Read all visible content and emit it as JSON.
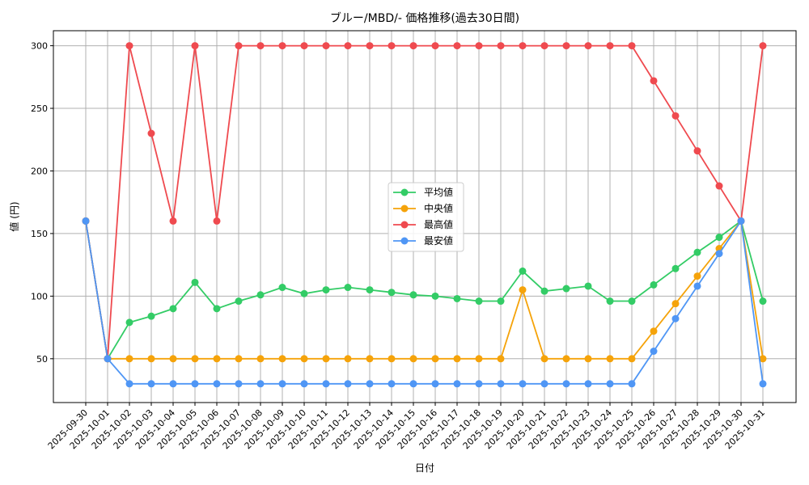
{
  "chart_data": {
    "type": "line",
    "title": "ブルー/MBD/- 価格推移(過去30日間)",
    "xlabel": "日付",
    "ylabel": "値 (円)",
    "ylim": [
      15,
      312
    ],
    "yticks": [
      50,
      100,
      150,
      200,
      250,
      300
    ],
    "grid": true,
    "legend_position": "center",
    "categories": [
      "2025-09-30",
      "2025-10-01",
      "2025-10-02",
      "2025-10-03",
      "2025-10-04",
      "2025-10-05",
      "2025-10-06",
      "2025-10-07",
      "2025-10-08",
      "2025-10-09",
      "2025-10-10",
      "2025-10-11",
      "2025-10-12",
      "2025-10-13",
      "2025-10-14",
      "2025-10-15",
      "2025-10-16",
      "2025-10-17",
      "2025-10-18",
      "2025-10-19",
      "2025-10-20",
      "2025-10-21",
      "2025-10-22",
      "2025-10-23",
      "2025-10-24",
      "2025-10-25",
      "2025-10-26",
      "2025-10-27",
      "2025-10-28",
      "2025-10-29",
      "2025-10-30",
      "2025-10-31"
    ],
    "series": [
      {
        "name": "平均値",
        "color": "#33cc66",
        "values": [
          160,
          50,
          79,
          84,
          90,
          111,
          90,
          96,
          101,
          107,
          102,
          105,
          107,
          105,
          103,
          101,
          100,
          98,
          96,
          96,
          120,
          104,
          106,
          108,
          96,
          96,
          109,
          122,
          135,
          147,
          160,
          96
        ]
      },
      {
        "name": "中央値",
        "color": "#f5a30a",
        "values": [
          160,
          50,
          50,
          50,
          50,
          50,
          50,
          50,
          50,
          50,
          50,
          50,
          50,
          50,
          50,
          50,
          50,
          50,
          50,
          50,
          105,
          50,
          50,
          50,
          50,
          50,
          72,
          94,
          116,
          138,
          160,
          50
        ]
      },
      {
        "name": "最高値",
        "color": "#ef4a4f",
        "values": [
          160,
          50,
          300,
          230,
          160,
          300,
          160,
          300,
          300,
          300,
          300,
          300,
          300,
          300,
          300,
          300,
          300,
          300,
          300,
          300,
          300,
          300,
          300,
          300,
          300,
          300,
          272,
          244,
          216,
          188,
          160,
          300
        ]
      },
      {
        "name": "最安値",
        "color": "#4f96f5",
        "values": [
          160,
          50,
          30,
          30,
          30,
          30,
          30,
          30,
          30,
          30,
          30,
          30,
          30,
          30,
          30,
          30,
          30,
          30,
          30,
          30,
          30,
          30,
          30,
          30,
          30,
          30,
          56,
          82,
          108,
          134,
          160,
          30
        ]
      }
    ]
  }
}
